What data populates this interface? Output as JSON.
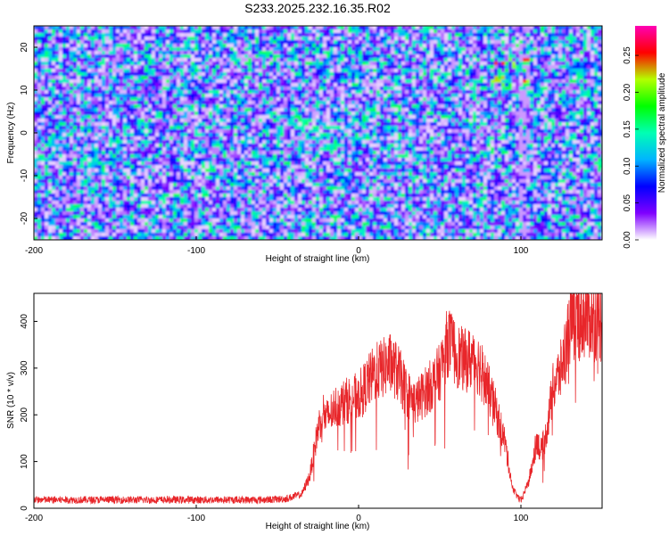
{
  "title": "S233.2025.232.16.35.R02",
  "chart_data": [
    {
      "type": "heatmap",
      "xlabel": "Height of straight line (km)",
      "ylabel": "Frequency (Hz)",
      "xlim": [
        -200,
        150
      ],
      "ylim": [
        -25,
        25
      ],
      "xticks": [
        -200,
        -100,
        0,
        100
      ],
      "yticks": [
        -20,
        -10,
        0,
        10,
        20
      ],
      "colorbar": {
        "label": "Normalized spectral amplitude",
        "range": [
          0,
          0.29
        ],
        "ticks": [
          0.0,
          0.05,
          0.1,
          0.15,
          0.2,
          0.25
        ],
        "colormap": [
          "#ffffff",
          "#7f00ff",
          "#0000ff",
          "#00b4ff",
          "#00ffb4",
          "#00ff00",
          "#b4ff00",
          "#ff0000",
          "#ff00b4"
        ]
      },
      "grid": false
    },
    {
      "type": "line",
      "xlabel": "Height of straight line (km)",
      "ylabel": "SNR (10 * v/v)",
      "xlim": [
        -200,
        150
      ],
      "ylim": [
        0,
        460
      ],
      "xticks": [
        -200,
        -100,
        0,
        100
      ],
      "yticks": [
        0,
        100,
        200,
        300,
        400
      ],
      "color": "#e8262a",
      "grid": false,
      "series": [
        {
          "x": [
            -200,
            -180,
            -160,
            -140,
            -120,
            -100,
            -80,
            -60,
            -45,
            -35,
            -30,
            -27,
            -25,
            -22,
            -20,
            -15,
            -10,
            -5,
            0,
            5,
            10,
            15,
            20,
            25,
            30,
            35,
            40,
            45,
            50,
            55,
            60,
            65,
            70,
            75,
            80,
            85,
            90,
            95,
            100,
            105,
            110,
            112,
            115,
            120,
            125,
            130,
            135,
            140,
            145,
            150
          ],
          "y": [
            18,
            18,
            18,
            18,
            18,
            18,
            18,
            18,
            20,
            30,
            70,
            130,
            170,
            210,
            190,
            215,
            225,
            235,
            240,
            265,
            290,
            300,
            310,
            285,
            245,
            225,
            245,
            265,
            290,
            360,
            330,
            315,
            320,
            305,
            255,
            205,
            145,
            40,
            15,
            60,
            150,
            120,
            150,
            260,
            300,
            390,
            400,
            410,
            405,
            395
          ]
        }
      ]
    }
  ]
}
